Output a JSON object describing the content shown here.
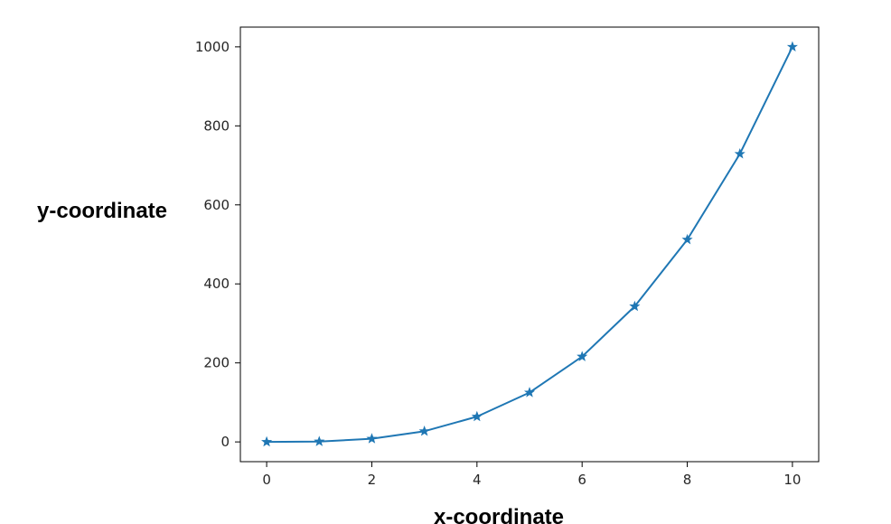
{
  "chart_data": {
    "type": "line",
    "title": "",
    "xlabel": "x-coordinate",
    "ylabel": "y-coordinate",
    "x": [
      0,
      1,
      2,
      3,
      4,
      5,
      6,
      7,
      8,
      9,
      10
    ],
    "series": [
      {
        "values": [
          0,
          1,
          8,
          27,
          64,
          125,
          216,
          343,
          512,
          729,
          1000
        ],
        "marker": "star",
        "color": "#1f77b4"
      }
    ],
    "xlim": [
      -0.5,
      10.5
    ],
    "ylim": [
      -50,
      1050
    ],
    "xticks": [
      0,
      2,
      4,
      6,
      8,
      10
    ],
    "yticks": [
      0,
      200,
      400,
      600,
      800,
      1000
    ],
    "xtick_labels": [
      "0",
      "2",
      "4",
      "6",
      "8",
      "10"
    ],
    "ytick_labels": [
      "0",
      "200",
      "400",
      "600",
      "800",
      "1000"
    ],
    "grid": false,
    "legend": "none"
  }
}
